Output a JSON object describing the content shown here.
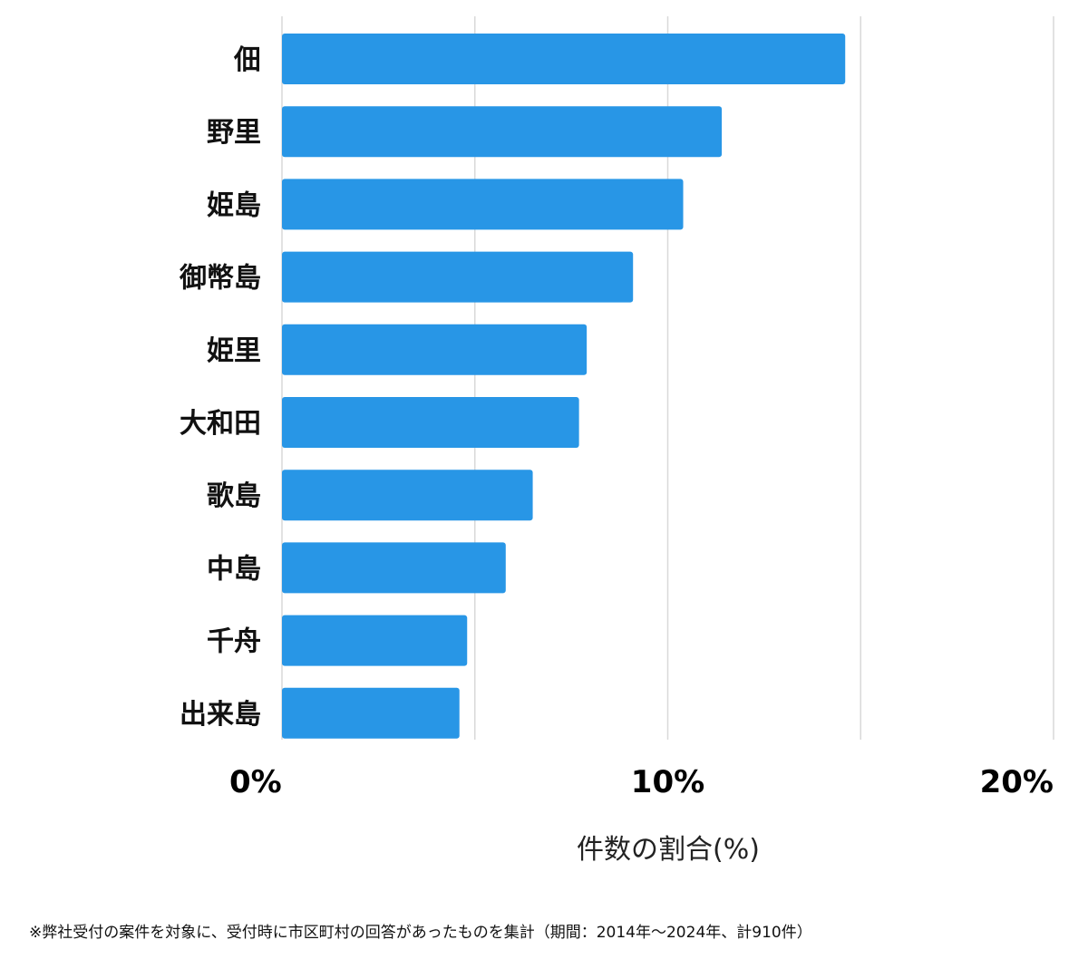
{
  "chart_data": {
    "type": "bar",
    "orientation": "horizontal",
    "categories": [
      "佃",
      "野里",
      "姫島",
      "御幣島",
      "姫里",
      "大和田",
      "歌島",
      "中島",
      "千舟",
      "出来島"
    ],
    "values": [
      14.6,
      11.4,
      10.4,
      9.1,
      7.9,
      7.7,
      6.5,
      5.8,
      4.8,
      4.6
    ],
    "xlim": [
      0,
      20
    ],
    "xticks": [
      0,
      10,
      20
    ],
    "xtick_labels": [
      "0%",
      "10%",
      "20%"
    ],
    "gridlines": [
      0,
      5,
      10,
      15,
      20
    ],
    "xlabel": "件数の割合(%)",
    "grid": true,
    "bar_color": "#2896e6",
    "grid_color": "#d9d9d9"
  },
  "footnote": "※弊社受付の案件を対象に、受付時に市区町村の回答があったものを集計（期間：2014年～2024年、計910件）"
}
